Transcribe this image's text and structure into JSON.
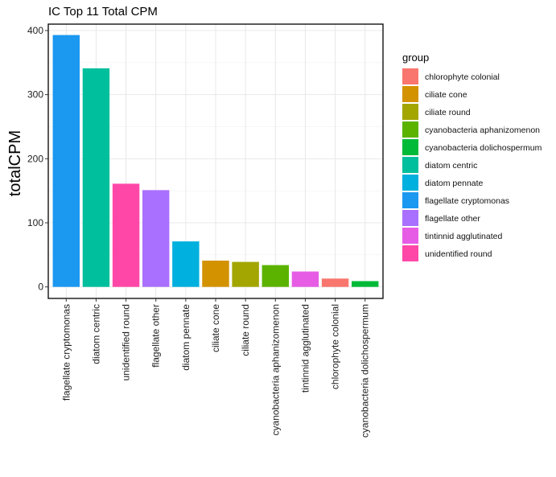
{
  "chart_data": {
    "type": "bar",
    "title": "IC Top 11 Total CPM",
    "xlabel": "",
    "ylabel": "totalCPM",
    "ylim": [
      -18,
      410
    ],
    "yticks": [
      0,
      100,
      200,
      300,
      400
    ],
    "grid": true,
    "categories": [
      "flagellate cryptomonas",
      "diatom centric",
      "unidentified round",
      "flagellate other",
      "diatom pennate",
      "ciliate cone",
      "ciliate round",
      "cyanobacteria aphanizomenon",
      "tintinnid agglutinated",
      "chlorophyte colonial",
      "cyanobacteria dolichospermum"
    ],
    "values": [
      393,
      341,
      161,
      151,
      71,
      41,
      39,
      34,
      24,
      13,
      9
    ],
    "legend": {
      "title": "group",
      "placement": "right",
      "entries": [
        {
          "label": "chlorophyte colonial",
          "color": "#F8766D"
        },
        {
          "label": "ciliate cone",
          "color": "#D39200"
        },
        {
          "label": "ciliate round",
          "color": "#A3A500"
        },
        {
          "label": "cyanobacteria aphanizomenon",
          "color": "#5BB300"
        },
        {
          "label": "cyanobacteria dolichospermum",
          "color": "#00BA38"
        },
        {
          "label": "diatom centric",
          "color": "#00BF9C"
        },
        {
          "label": "diatom pennate",
          "color": "#00B0DE"
        },
        {
          "label": "flagellate cryptomonas",
          "color": "#1B98F0"
        },
        {
          "label": "flagellate other",
          "color": "#A970FF"
        },
        {
          "label": "tintinnid agglutinated",
          "color": "#E65CE5"
        },
        {
          "label": "unidentified round",
          "color": "#FF47A8"
        }
      ]
    }
  }
}
